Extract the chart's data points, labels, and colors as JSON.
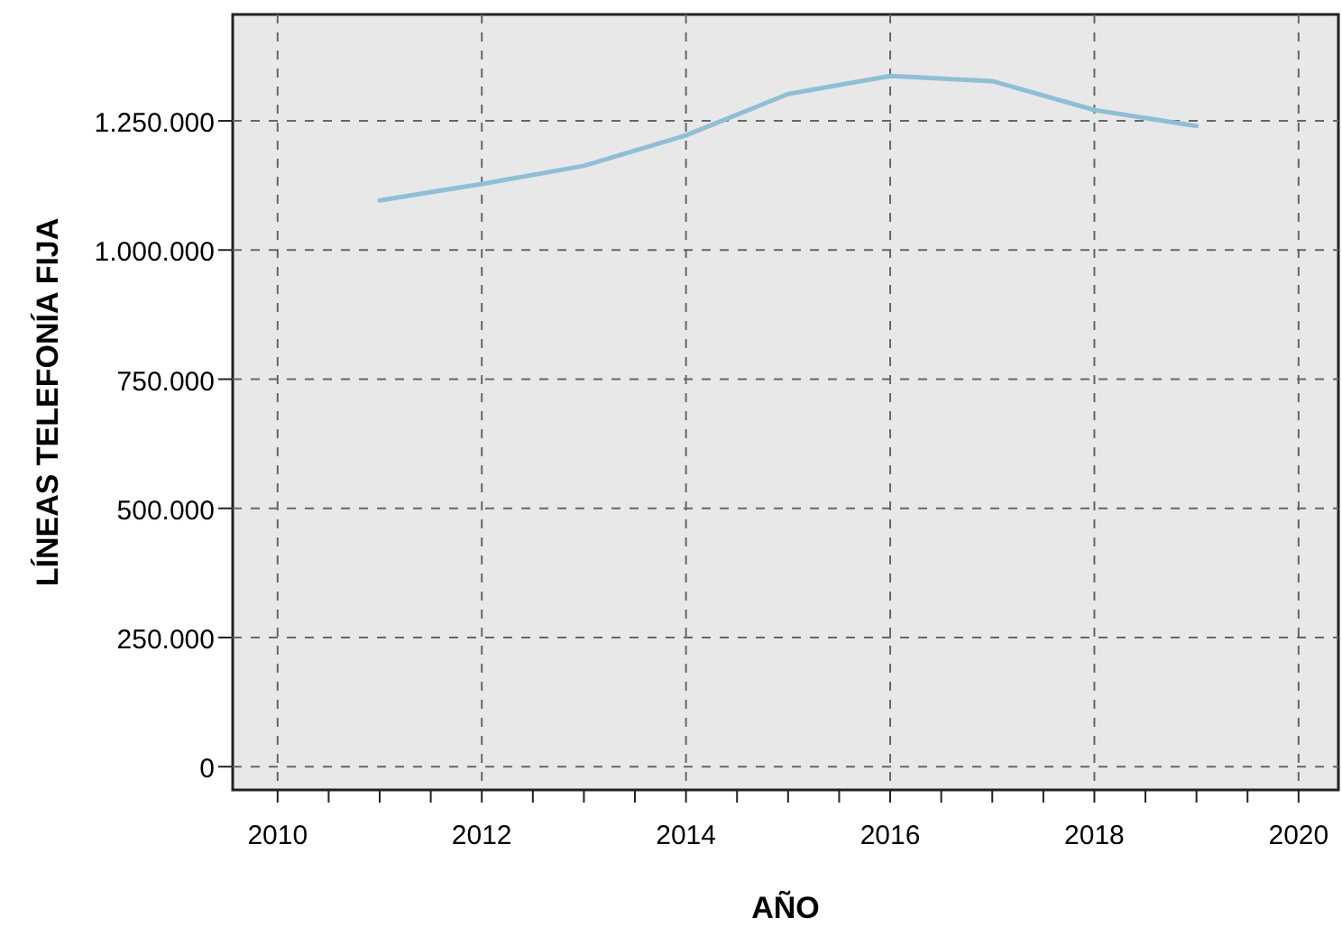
{
  "chart_data": {
    "type": "line",
    "xlabel": "AÑO",
    "ylabel": "LÍNEAS TELEFONÍA FIJA",
    "x": [
      2011,
      2012,
      2013,
      2014,
      2015,
      2016,
      2017,
      2018,
      2019
    ],
    "series": [
      {
        "color": "#8fbfd6",
        "values": [
          1096000,
          1128000,
          1163000,
          1222000,
          1302000,
          1337000,
          1327000,
          1271000,
          1240000
        ]
      }
    ],
    "xlim": [
      2009.56,
      2020.39
    ],
    "xticks": [
      2010,
      {
        "value": 2010.5,
        "label": null
      },
      {
        "value": 2011,
        "label": null
      },
      {
        "value": 2011.5,
        "label": null
      },
      2012,
      {
        "value": 2012.5,
        "label": null
      },
      {
        "value": 2013,
        "label": null
      },
      {
        "value": 2013.5,
        "label": null
      },
      2014,
      {
        "value": 2014.5,
        "label": null
      },
      {
        "value": 2015,
        "label": null
      },
      {
        "value": 2015.5,
        "label": null
      },
      2016,
      {
        "value": 2016.5,
        "label": null
      },
      {
        "value": 2017,
        "label": null
      },
      {
        "value": 2017.5,
        "label": null
      },
      2018,
      {
        "value": 2018.5,
        "label": null
      },
      {
        "value": 2019,
        "label": null
      },
      {
        "value": 2019.5,
        "label": null
      },
      2020
    ],
    "ylim": [
      -45000,
      1456000
    ],
    "yticks": [
      0,
      {
        "value": 250000,
        "label": "250.000"
      },
      {
        "value": 500000,
        "label": "500.000"
      },
      {
        "value": 750000,
        "label": "750.000"
      },
      {
        "value": 1000000,
        "label": "1.000.000"
      },
      {
        "value": 1250000,
        "label": "1.250.000"
      }
    ],
    "grid": true,
    "marker": "none",
    "line_style": "solid"
  }
}
